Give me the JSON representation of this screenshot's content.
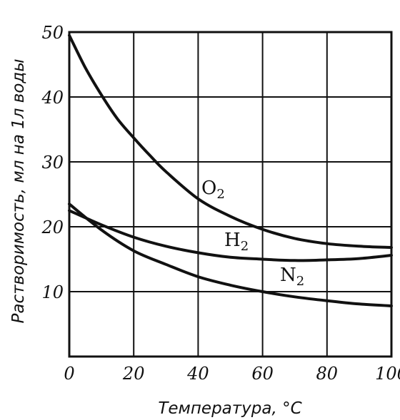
{
  "chart_data": {
    "type": "line",
    "xlabel": "Температура, °C",
    "ylabel": "Растворимость, мл на 1л воды",
    "xlim": [
      0,
      100
    ],
    "ylim": [
      0,
      50
    ],
    "x_ticks": [
      0,
      20,
      40,
      60,
      80,
      100
    ],
    "y_ticks": [
      10,
      20,
      30,
      40,
      50
    ],
    "grid": true,
    "series": [
      {
        "name": "O",
        "subscript": "2",
        "x": [
          0,
          5,
          10,
          15,
          20,
          25,
          30,
          40,
          50,
          60,
          70,
          80,
          90,
          100
        ],
        "y": [
          49.5,
          44.5,
          40.3,
          36.6,
          33.7,
          31.0,
          28.5,
          24.3,
          21.6,
          19.6,
          18.2,
          17.4,
          17.0,
          16.8
        ]
      },
      {
        "name": "H",
        "subscript": "2",
        "x": [
          0,
          10,
          20,
          30,
          40,
          50,
          60,
          70,
          80,
          90,
          100
        ],
        "y": [
          22.5,
          20.3,
          18.4,
          17.0,
          16.0,
          15.3,
          15.0,
          14.8,
          14.9,
          15.1,
          15.6
        ]
      },
      {
        "name": "N",
        "subscript": "2",
        "x": [
          0,
          10,
          20,
          30,
          40,
          50,
          60,
          70,
          80,
          90,
          100
        ],
        "y": [
          23.5,
          19.5,
          16.3,
          14.2,
          12.3,
          11.0,
          10.0,
          9.2,
          8.6,
          8.1,
          7.8
        ]
      }
    ]
  }
}
